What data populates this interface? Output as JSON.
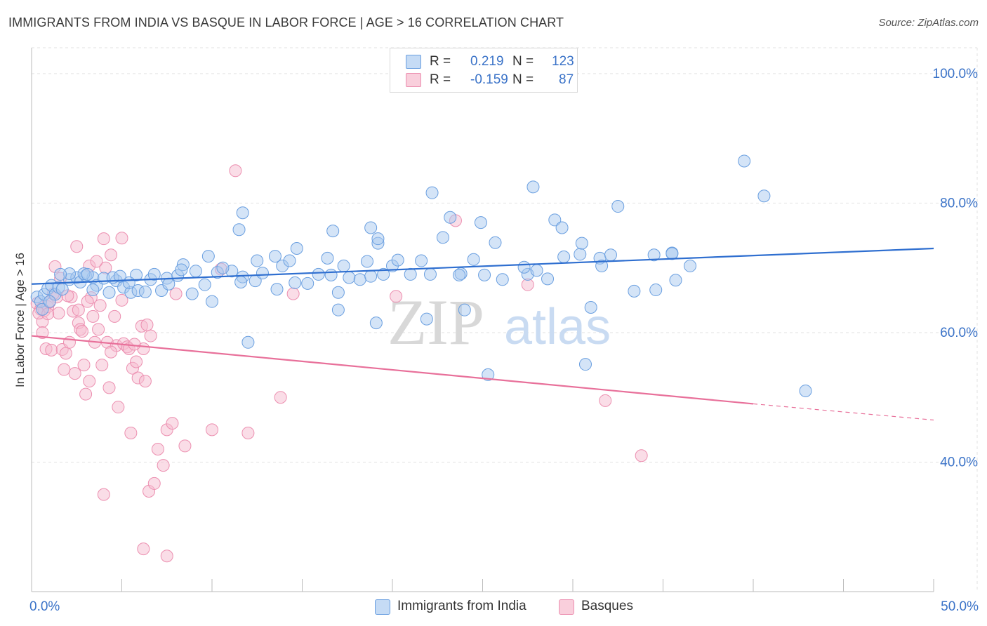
{
  "header": {
    "title": "IMMIGRANTS FROM INDIA VS BASQUE IN LABOR FORCE | AGE > 16 CORRELATION CHART",
    "source": "Source: ZipAtlas.com"
  },
  "legend_top": {
    "rows": [
      {
        "r_label": "R =",
        "r_value": "0.219",
        "n_label": "N =",
        "n_value": "123"
      },
      {
        "r_label": "R =",
        "r_value": "-0.159",
        "n_label": "N =",
        "n_value": "87"
      }
    ]
  },
  "legend_bottom": {
    "items": [
      {
        "label": "Immigrants from India"
      },
      {
        "label": "Basques"
      }
    ]
  },
  "watermark": {
    "zip": "ZIP",
    "atlas": "atlas"
  },
  "colors": {
    "india_fill": "#a9c9f0",
    "india_stroke": "#6a9fe0",
    "india_line": "#2f6fd0",
    "basque_fill": "#f6bcd0",
    "basque_stroke": "#ec8fb0",
    "basque_line": "#e8709a",
    "axis_label": "#3b73c8",
    "grid": "#e2e2e2"
  },
  "chart_data": {
    "type": "scatter",
    "title": "IMMIGRANTS FROM INDIA VS BASQUE IN LABOR FORCE | AGE > 16 CORRELATION CHART",
    "xlabel": "",
    "ylabel": "In Labor Force | Age > 16",
    "xlim": [
      0,
      50
    ],
    "ylim": [
      20,
      104
    ],
    "x_tick_labels": [
      {
        "value": 0,
        "label": "0.0%"
      },
      {
        "value": 50,
        "label": "50.0%"
      }
    ],
    "y_ticks": [
      {
        "value": 100,
        "label": "100.0%"
      },
      {
        "value": 80,
        "label": "80.0%"
      },
      {
        "value": 60,
        "label": "60.0%"
      },
      {
        "value": 40,
        "label": "40.0%"
      }
    ],
    "grid": true,
    "legend_placement": "bottom",
    "series": [
      {
        "name": "Immigrants from India",
        "r": 0.219,
        "n": 123,
        "trend": {
          "x0": 0,
          "y0": 67.5,
          "x1": 50,
          "y1": 73.0
        },
        "points": [
          [
            0.3,
            65.5
          ],
          [
            0.5,
            64.8
          ],
          [
            0.7,
            65.9
          ],
          [
            0.9,
            66.8
          ],
          [
            1.1,
            67.3
          ],
          [
            1.3,
            65.9
          ],
          [
            1.5,
            67.0
          ],
          [
            1.7,
            66.7
          ],
          [
            2.1,
            68.2
          ],
          [
            2.5,
            68.5
          ],
          [
            2.7,
            67.8
          ],
          [
            3.0,
            68.8
          ],
          [
            3.4,
            68.5
          ],
          [
            3.6,
            67.3
          ],
          [
            4.0,
            68.4
          ],
          [
            4.3,
            66.2
          ],
          [
            4.7,
            68.0
          ],
          [
            5.1,
            67.0
          ],
          [
            5.5,
            66.2
          ],
          [
            5.8,
            68.9
          ],
          [
            6.6,
            68.2
          ],
          [
            7.2,
            66.5
          ],
          [
            7.5,
            68.4
          ],
          [
            8.1,
            68.8
          ],
          [
            8.9,
            66.0
          ],
          [
            9.6,
            67.4
          ],
          [
            10.3,
            69.3
          ],
          [
            11.1,
            69.5
          ],
          [
            11.7,
            68.6
          ],
          [
            12.4,
            68.0
          ],
          [
            12.8,
            69.2
          ],
          [
            13.6,
            66.7
          ],
          [
            13.9,
            70.3
          ],
          [
            14.6,
            67.7
          ],
          [
            15.3,
            67.6
          ],
          [
            15.9,
            69.0
          ],
          [
            16.6,
            68.9
          ],
          [
            17.0,
            66.2
          ],
          [
            17.6,
            68.5
          ],
          [
            18.2,
            68.2
          ],
          [
            18.8,
            68.7
          ],
          [
            19.5,
            69.0
          ],
          [
            20.0,
            70.3
          ],
          [
            21.0,
            69.0
          ],
          [
            22.1,
            69.0
          ],
          [
            23.8,
            69.1
          ],
          [
            24.5,
            71.3
          ],
          [
            25.1,
            68.9
          ],
          [
            26.1,
            68.2
          ],
          [
            27.5,
            69.0
          ],
          [
            29.5,
            71.7
          ],
          [
            30.4,
            72.1
          ],
          [
            31.5,
            71.5
          ],
          [
            32.1,
            72.0
          ],
          [
            34.5,
            72.0
          ],
          [
            35.5,
            72.3
          ],
          [
            36.5,
            70.3
          ],
          [
            0.6,
            63.6
          ],
          [
            1.0,
            64.8
          ],
          [
            2.1,
            69.1
          ],
          [
            2.9,
            69.1
          ],
          [
            4.5,
            68.5
          ],
          [
            5.9,
            66.5
          ],
          [
            6.8,
            69.0
          ],
          [
            7.6,
            67.5
          ],
          [
            8.4,
            70.5
          ],
          [
            9.8,
            71.8
          ],
          [
            10.6,
            70.0
          ],
          [
            11.6,
            67.8
          ],
          [
            12.5,
            71.1
          ],
          [
            13.5,
            71.8
          ],
          [
            14.3,
            71.1
          ],
          [
            14.7,
            73.0
          ],
          [
            16.4,
            71.5
          ],
          [
            17.3,
            70.3
          ],
          [
            18.6,
            71.0
          ],
          [
            19.2,
            73.8
          ],
          [
            20.3,
            71.2
          ],
          [
            21.6,
            71.1
          ],
          [
            22.8,
            74.7
          ],
          [
            23.7,
            68.9
          ],
          [
            25.7,
            73.9
          ],
          [
            27.3,
            70.1
          ],
          [
            28.0,
            69.6
          ],
          [
            30.5,
            73.8
          ],
          [
            31.6,
            70.3
          ],
          [
            28.6,
            68.3
          ],
          [
            31.0,
            63.9
          ],
          [
            33.4,
            66.4
          ],
          [
            34.6,
            66.6
          ],
          [
            35.7,
            68.1
          ],
          [
            30.7,
            55.1
          ],
          [
            24.0,
            63.5
          ],
          [
            17.0,
            63.5
          ],
          [
            19.1,
            61.5
          ],
          [
            21.9,
            62.1
          ],
          [
            11.5,
            75.9
          ],
          [
            11.7,
            78.5
          ],
          [
            16.7,
            75.7
          ],
          [
            18.8,
            76.2
          ],
          [
            19.2,
            74.5
          ],
          [
            22.2,
            81.6
          ],
          [
            23.2,
            77.8
          ],
          [
            24.9,
            77.0
          ],
          [
            27.8,
            82.5
          ],
          [
            29.0,
            77.4
          ],
          [
            29.4,
            76.2
          ],
          [
            32.5,
            79.5
          ],
          [
            35.5,
            72.2
          ],
          [
            39.5,
            86.5
          ],
          [
            40.6,
            81.1
          ],
          [
            42.9,
            51.0
          ],
          [
            25.3,
            53.5
          ],
          [
            12.0,
            58.5
          ],
          [
            10.0,
            64.8
          ],
          [
            5.4,
            67.7
          ],
          [
            3.4,
            66.6
          ],
          [
            6.3,
            66.3
          ],
          [
            9.1,
            69.5
          ],
          [
            8.3,
            69.7
          ],
          [
            1.6,
            69.0
          ],
          [
            3.1,
            69.0
          ],
          [
            4.9,
            68.7
          ]
        ]
      },
      {
        "name": "Basques",
        "r": -0.159,
        "n": 87,
        "trend": {
          "x0": 0,
          "y0": 59.5,
          "x1": 40,
          "y1": 49.0
        },
        "trend_dashed": {
          "x0": 40,
          "y0": 49.0,
          "x1": 50,
          "y1": 46.5
        },
        "points": [
          [
            0.3,
            64.5
          ],
          [
            0.5,
            63.6
          ],
          [
            0.7,
            63.4
          ],
          [
            0.9,
            64.0
          ],
          [
            0.6,
            61.7
          ],
          [
            0.6,
            60.0
          ],
          [
            0.8,
            57.5
          ],
          [
            1.1,
            57.3
          ],
          [
            1.4,
            65.5
          ],
          [
            1.5,
            63.0
          ],
          [
            1.7,
            57.4
          ],
          [
            1.8,
            54.3
          ],
          [
            1.9,
            56.8
          ],
          [
            2.1,
            58.5
          ],
          [
            2.2,
            65.5
          ],
          [
            2.3,
            63.3
          ],
          [
            2.4,
            53.7
          ],
          [
            2.6,
            61.5
          ],
          [
            2.7,
            60.5
          ],
          [
            2.8,
            60.2
          ],
          [
            2.9,
            55.0
          ],
          [
            3.0,
            50.5
          ],
          [
            3.2,
            52.5
          ],
          [
            3.3,
            65.4
          ],
          [
            3.4,
            62.5
          ],
          [
            3.5,
            58.5
          ],
          [
            3.7,
            60.5
          ],
          [
            3.9,
            55.0
          ],
          [
            4.1,
            70.0
          ],
          [
            4.2,
            58.5
          ],
          [
            4.3,
            51.5
          ],
          [
            4.4,
            72.0
          ],
          [
            4.6,
            62.5
          ],
          [
            4.7,
            58.0
          ],
          [
            4.8,
            48.5
          ],
          [
            5.0,
            65.0
          ],
          [
            5.1,
            58.3
          ],
          [
            5.3,
            57.8
          ],
          [
            5.4,
            57.5
          ],
          [
            5.5,
            44.5
          ],
          [
            5.6,
            54.5
          ],
          [
            5.8,
            55.5
          ],
          [
            5.9,
            53.0
          ],
          [
            6.1,
            61.0
          ],
          [
            6.2,
            57.5
          ],
          [
            6.3,
            52.5
          ],
          [
            6.5,
            35.5
          ],
          [
            6.6,
            59.5
          ],
          [
            6.8,
            36.7
          ],
          [
            7.0,
            42.0
          ],
          [
            7.3,
            39.5
          ],
          [
            7.5,
            45.0
          ],
          [
            7.8,
            46.0
          ],
          [
            8.5,
            42.5
          ],
          [
            10.0,
            45.0
          ],
          [
            10.5,
            69.8
          ],
          [
            11.3,
            85.0
          ],
          [
            12.0,
            44.5
          ],
          [
            13.8,
            50.0
          ],
          [
            14.5,
            66.0
          ],
          [
            20.2,
            65.6
          ],
          [
            23.5,
            77.3
          ],
          [
            27.5,
            67.4
          ],
          [
            31.8,
            49.5
          ],
          [
            33.8,
            41.0
          ],
          [
            0.4,
            63.0
          ],
          [
            0.9,
            62.9
          ],
          [
            1.3,
            70.2
          ],
          [
            1.6,
            68.4
          ],
          [
            2.5,
            73.3
          ],
          [
            3.2,
            70.3
          ],
          [
            3.6,
            71.0
          ],
          [
            4.0,
            74.5
          ],
          [
            5.0,
            74.6
          ],
          [
            6.2,
            26.6
          ],
          [
            7.5,
            25.5
          ],
          [
            4.0,
            35.0
          ],
          [
            1.0,
            64.7
          ],
          [
            1.2,
            66.0
          ],
          [
            2.0,
            65.7
          ],
          [
            2.6,
            63.5
          ],
          [
            3.1,
            64.8
          ],
          [
            3.8,
            64.2
          ],
          [
            4.4,
            57.0
          ],
          [
            5.7,
            58.2
          ],
          [
            6.4,
            61.2
          ],
          [
            8.0,
            66.0
          ]
        ]
      }
    ]
  }
}
